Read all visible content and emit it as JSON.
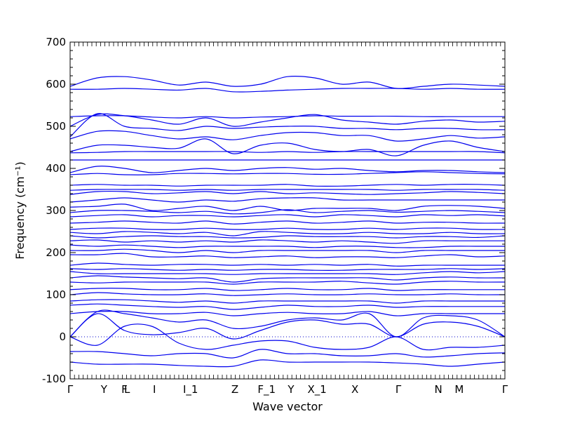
{
  "chart_data": {
    "type": "line",
    "title": "",
    "xlabel": "Wave vector",
    "ylabel": "Frequency (cm⁻¹)",
    "ylim": [
      -100,
      700
    ],
    "yticks": [
      -100,
      0,
      100,
      200,
      300,
      400,
      500,
      600,
      700
    ],
    "xlim": [
      0,
      1
    ],
    "xticks": [
      {
        "label": "Γ",
        "x": 0.0
      },
      {
        "label": "Y",
        "x": 0.078
      },
      {
        "label": "F",
        "x": 0.125
      },
      {
        "label": "L",
        "x": 0.131
      },
      {
        "label": "I",
        "x": 0.194
      },
      {
        "label": "I_1",
        "x": 0.277
      },
      {
        "label": "Z",
        "x": 0.379
      },
      {
        "label": "F_1",
        "x": 0.452
      },
      {
        "label": "Y",
        "x": 0.508
      },
      {
        "label": "X_1",
        "x": 0.568
      },
      {
        "label": "X",
        "x": 0.655
      },
      {
        "label": "Γ",
        "x": 0.755
      },
      {
        "label": "N",
        "x": 0.847
      },
      {
        "label": "M",
        "x": 0.895
      },
      {
        "label": "Γ",
        "x": 1.0
      }
    ],
    "zero_line": true,
    "line_color": "#0000ee",
    "zero_line_color": "#0000cc",
    "series": [
      {
        "y": [
          595,
          615,
          618,
          610,
          598,
          605,
          595,
          600,
          618,
          615,
          600,
          605,
          590,
          595,
          600,
          598,
          595
        ]
      },
      {
        "y": [
          588,
          588,
          590,
          588,
          586,
          590,
          582,
          583,
          586,
          588,
          590,
          590,
          590,
          588,
          590,
          588,
          588
        ]
      },
      {
        "y": [
          523,
          525,
          525,
          522,
          520,
          523,
          520,
          522,
          523,
          525,
          524,
          524,
          524,
          523,
          523,
          523,
          523
        ]
      },
      {
        "y": [
          500,
          528,
          525,
          515,
          505,
          520,
          500,
          510,
          520,
          528,
          515,
          510,
          505,
          512,
          515,
          510,
          512
        ]
      },
      {
        "y": [
          475,
          530,
          500,
          495,
          490,
          500,
          495,
          498,
          500,
          500,
          495,
          495,
          492,
          495,
          495,
          492,
          492
        ]
      },
      {
        "y": [
          470,
          488,
          488,
          478,
          470,
          475,
          468,
          478,
          485,
          485,
          478,
          478,
          465,
          470,
          478,
          472,
          475
        ]
      },
      {
        "y": [
          440,
          455,
          455,
          450,
          448,
          470,
          435,
          455,
          460,
          445,
          440,
          445,
          430,
          455,
          465,
          450,
          440
        ]
      },
      {
        "y": [
          437,
          438,
          440,
          440,
          440,
          440,
          440,
          438,
          440,
          438,
          440,
          440,
          440,
          440,
          440,
          440,
          437
        ]
      },
      {
        "y": [
          420,
          420,
          420,
          420,
          420,
          420,
          420,
          420,
          420,
          420,
          420,
          420,
          420,
          420,
          420,
          420,
          420
        ]
      },
      {
        "y": [
          390,
          405,
          400,
          390,
          395,
          400,
          395,
          400,
          402,
          398,
          400,
          395,
          392,
          395,
          395,
          392,
          390
        ]
      },
      {
        "y": [
          385,
          388,
          385,
          385,
          388,
          388,
          387,
          388,
          388,
          386,
          386,
          388,
          390,
          392,
          390,
          388,
          387
        ]
      },
      {
        "y": [
          360,
          362,
          360,
          360,
          358,
          360,
          360,
          360,
          362,
          358,
          358,
          360,
          362,
          360,
          362,
          362,
          360
        ]
      },
      {
        "y": [
          348,
          350,
          350,
          350,
          348,
          350,
          348,
          350,
          350,
          350,
          350,
          350,
          348,
          350,
          350,
          350,
          348
        ]
      },
      {
        "y": [
          338,
          345,
          345,
          340,
          342,
          345,
          340,
          345,
          340,
          342,
          340,
          338,
          340,
          342,
          345,
          343,
          340
        ]
      },
      {
        "y": [
          320,
          325,
          330,
          325,
          320,
          325,
          322,
          328,
          330,
          330,
          325,
          325,
          325,
          325,
          325,
          325,
          325
        ]
      },
      {
        "y": [
          308,
          310,
          315,
          300,
          305,
          310,
          300,
          310,
          300,
          305,
          305,
          305,
          300,
          310,
          312,
          310,
          305
        ]
      },
      {
        "y": [
          295,
          300,
          300,
          298,
          295,
          298,
          292,
          295,
          302,
          295,
          298,
          300,
          296,
          298,
          300,
          298,
          295
        ]
      },
      {
        "y": [
          285,
          288,
          290,
          285,
          288,
          288,
          285,
          288,
          290,
          285,
          290,
          288,
          285,
          290,
          288,
          290,
          287
        ]
      },
      {
        "y": [
          270,
          272,
          275,
          272,
          270,
          275,
          268,
          272,
          275,
          270,
          272,
          275,
          270,
          272,
          272,
          270,
          270
        ]
      },
      {
        "y": [
          255,
          258,
          258,
          255,
          255,
          258,
          255,
          255,
          258,
          255,
          255,
          258,
          255,
          258,
          258,
          255,
          255
        ]
      },
      {
        "y": [
          248,
          245,
          250,
          248,
          245,
          248,
          240,
          250,
          248,
          245,
          245,
          248,
          245,
          245,
          248,
          245,
          245
        ]
      },
      {
        "y": [
          240,
          235,
          238,
          240,
          238,
          238,
          235,
          236,
          240,
          238,
          238,
          238,
          235,
          238,
          238,
          236,
          240
        ]
      },
      {
        "y": [
          228,
          230,
          225,
          228,
          225,
          228,
          225,
          230,
          228,
          225,
          228,
          225,
          222,
          228,
          228,
          228,
          228
        ]
      },
      {
        "y": [
          218,
          215,
          218,
          215,
          212,
          215,
          215,
          215,
          215,
          212,
          215,
          215,
          212,
          212,
          215,
          215,
          215
        ]
      },
      {
        "y": [
          205,
          205,
          208,
          205,
          200,
          205,
          200,
          205,
          205,
          205,
          205,
          205,
          200,
          205,
          205,
          205,
          205
        ]
      },
      {
        "y": [
          195,
          195,
          198,
          190,
          190,
          192,
          188,
          190,
          192,
          188,
          190,
          190,
          188,
          192,
          195,
          190,
          192
        ]
      },
      {
        "y": [
          170,
          175,
          172,
          170,
          172,
          172,
          170,
          172,
          170,
          172,
          170,
          172,
          168,
          170,
          170,
          170,
          170
        ]
      },
      {
        "y": [
          162,
          160,
          162,
          160,
          158,
          160,
          158,
          160,
          160,
          158,
          158,
          160,
          160,
          160,
          162,
          160,
          162
        ]
      },
      {
        "y": [
          155,
          150,
          150,
          150,
          150,
          150,
          148,
          150,
          150,
          150,
          150,
          150,
          148,
          152,
          155,
          152,
          155
        ]
      },
      {
        "y": [
          140,
          145,
          142,
          140,
          138,
          140,
          130,
          138,
          140,
          140,
          140,
          140,
          135,
          140,
          142,
          140,
          140
        ]
      },
      {
        "y": [
          130,
          128,
          130,
          130,
          130,
          130,
          125,
          130,
          130,
          130,
          132,
          128,
          125,
          130,
          132,
          130,
          130
        ]
      },
      {
        "y": [
          112,
          115,
          115,
          112,
          112,
          115,
          110,
          112,
          115,
          112,
          112,
          115,
          110,
          112,
          112,
          112,
          112
        ]
      },
      {
        "y": [
          100,
          105,
          102,
          100,
          100,
          102,
          98,
          100,
          102,
          100,
          100,
          102,
          100,
          100,
          102,
          100,
          100
        ]
      },
      {
        "y": [
          85,
          88,
          88,
          85,
          82,
          85,
          80,
          85,
          85,
          85,
          85,
          85,
          80,
          85,
          85,
          85,
          85
        ]
      },
      {
        "y": [
          75,
          78,
          75,
          72,
          70,
          72,
          65,
          70,
          75,
          72,
          72,
          75,
          70,
          72,
          72,
          72,
          72
        ]
      },
      {
        "y": [
          55,
          60,
          60,
          55,
          55,
          58,
          50,
          55,
          58,
          55,
          55,
          60,
          50,
          55,
          55,
          55,
          55
        ]
      },
      {
        "y": [
          0,
          60,
          55,
          45,
          35,
          40,
          20,
          25,
          40,
          45,
          40,
          55,
          0,
          45,
          50,
          40,
          0
        ]
      },
      {
        "y": [
          0,
          55,
          15,
          5,
          10,
          20,
          -5,
          15,
          35,
          40,
          30,
          30,
          0,
          30,
          35,
          25,
          0
        ]
      },
      {
        "y": [
          0,
          -20,
          25,
          25,
          -15,
          -30,
          -20,
          -10,
          -10,
          -25,
          -30,
          -25,
          0,
          -30,
          -25,
          -25,
          -20
        ]
      },
      {
        "y": [
          -35,
          -35,
          -40,
          -45,
          -40,
          -40,
          -50,
          -30,
          -40,
          -40,
          -45,
          -45,
          -40,
          -48,
          -45,
          -40,
          -38
        ]
      },
      {
        "y": [
          -60,
          -65,
          -65,
          -65,
          -68,
          -70,
          -70,
          -55,
          -60,
          -60,
          -60,
          -60,
          -62,
          -65,
          -70,
          -65,
          -60
        ]
      }
    ]
  }
}
